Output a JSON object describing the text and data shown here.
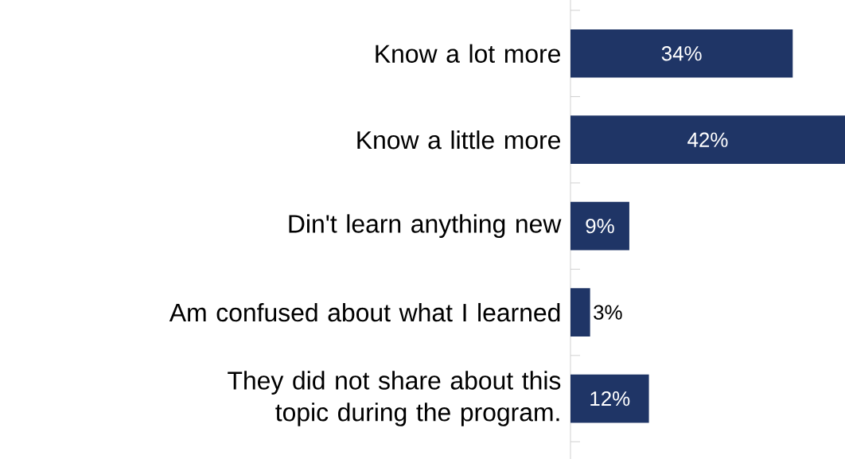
{
  "chart_data": {
    "type": "bar",
    "orientation": "horizontal",
    "categories": [
      "Know a lot more",
      "Know a little more",
      "Din't learn anything new",
      "Am confused about what I learned",
      "They did not share about this topic during the program."
    ],
    "values": [
      34,
      42,
      9,
      3,
      12
    ],
    "value_labels": [
      "34%",
      "42%",
      "9%",
      "3%",
      "12%"
    ],
    "color": "#1f3566"
  }
}
